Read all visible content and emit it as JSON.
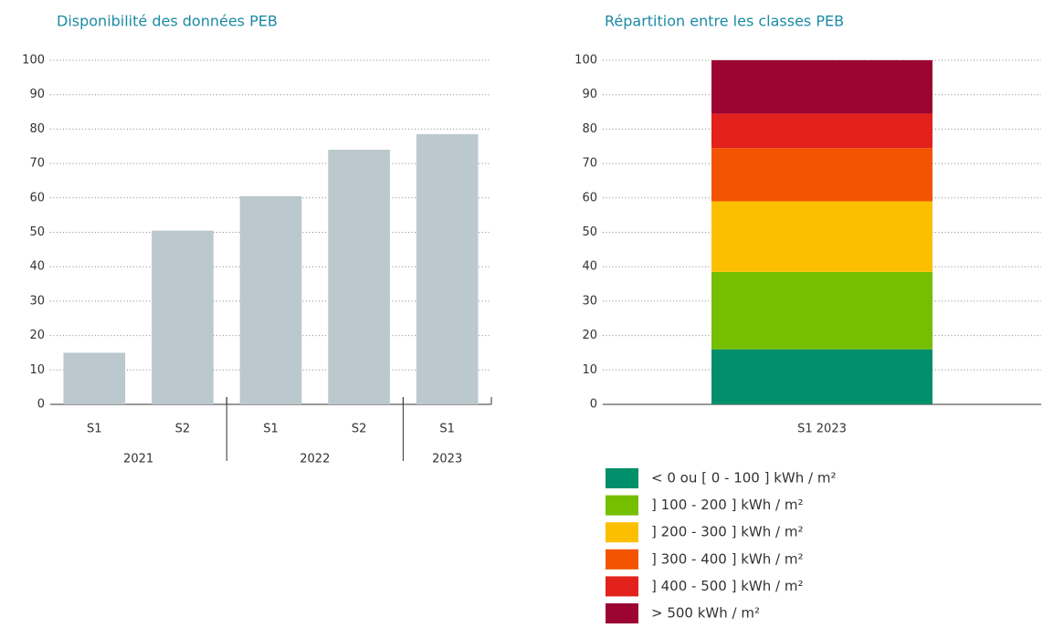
{
  "chart_data": [
    {
      "type": "bar",
      "title": "Disponibilité des données PEB",
      "categories": [
        "S1",
        "S2",
        "S1",
        "S2",
        "S1"
      ],
      "groups": [
        {
          "label": "2021",
          "span": 2
        },
        {
          "label": "2022",
          "span": 2
        },
        {
          "label": "2023",
          "span": 1
        }
      ],
      "values": [
        15,
        50.5,
        60.5,
        74,
        78.5
      ],
      "color": "#bbc8cd",
      "ylim": [
        0,
        100
      ],
      "yticks": [
        0,
        10,
        20,
        30,
        40,
        50,
        60,
        70,
        80,
        90,
        100
      ],
      "grid": true
    },
    {
      "type": "stacked_bar",
      "title": "Répartition entre les classes PEB",
      "categories": [
        "S1 2023"
      ],
      "series": [
        {
          "name": "< 0 ou [ 0 - 100 ] kWh / m²",
          "color": "#008f6b",
          "values": [
            16
          ]
        },
        {
          "name": "] 100 - 200 ] kWh / m²",
          "color": "#76be00",
          "values": [
            22.5
          ]
        },
        {
          "name": "] 200 - 300 ] kWh / m²",
          "color": "#fcbf00",
          "values": [
            20.5
          ]
        },
        {
          "name": "] 300 - 400 ] kWh / m²",
          "color": "#f25400",
          "values": [
            15.5
          ]
        },
        {
          "name": "] 400 - 500 ] kWh / m²",
          "color": "#e2211c",
          "values": [
            10
          ]
        },
        {
          "name": "> 500 kWh / m²",
          "color": "#9c0532",
          "values": [
            15.5
          ]
        }
      ],
      "ylim": [
        0,
        100
      ],
      "yticks": [
        0,
        10,
        20,
        30,
        40,
        50,
        60,
        70,
        80,
        90,
        100
      ],
      "grid": true,
      "legend": "bottom"
    }
  ]
}
